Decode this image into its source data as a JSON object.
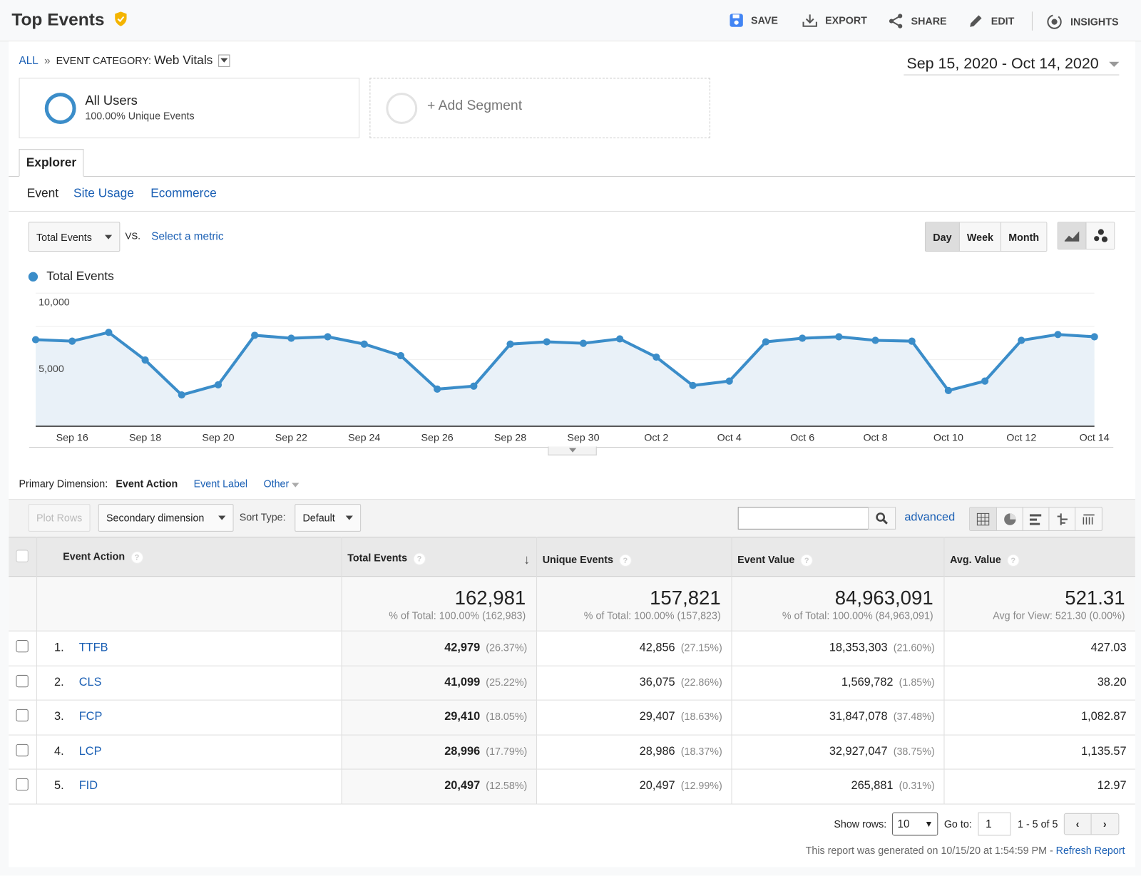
{
  "header": {
    "title": "Top Events",
    "verified_icon": "shield-check-icon",
    "actions": [
      {
        "label": "SAVE",
        "icon": "save-icon"
      },
      {
        "label": "EXPORT",
        "icon": "download-icon"
      },
      {
        "label": "SHARE",
        "icon": "share-icon"
      },
      {
        "label": "EDIT",
        "icon": "pencil-icon"
      },
      {
        "label": "INSIGHTS",
        "icon": "insights-icon"
      }
    ]
  },
  "breadcrumb": {
    "all": "ALL",
    "sep": "»",
    "category_label": "EVENT CATEGORY:",
    "category_value": "Web Vitals"
  },
  "date_range": "Sep 15, 2020 - Oct 14, 2020",
  "segments": {
    "active_name": "All Users",
    "active_sub": "100.00% Unique Events",
    "add": "+ Add Segment"
  },
  "tabs": {
    "explorer": "Explorer",
    "subtabs": [
      "Event",
      "Site Usage",
      "Ecommerce"
    ]
  },
  "chart_controls": {
    "metric": "Total Events",
    "vs": "VS.",
    "select_metric": "Select a metric",
    "periods": [
      "Day",
      "Week",
      "Month"
    ],
    "active_period": "Day"
  },
  "colors": {
    "series": "#3b8dc9",
    "link": "#1a5fb4",
    "area": "#e9f1f8"
  },
  "chart_data": {
    "type": "area",
    "legend": "Total Events",
    "legend_position": "top-left",
    "ylim": [
      0,
      10000
    ],
    "yticks": [
      "10,000",
      "5,000"
    ],
    "grid": true,
    "x": [
      "Sep 15",
      "Sep 16",
      "Sep 17",
      "Sep 18",
      "Sep 19",
      "Sep 20",
      "Sep 21",
      "Sep 22",
      "Sep 23",
      "Sep 24",
      "Sep 25",
      "Sep 26",
      "Sep 27",
      "Sep 28",
      "Sep 29",
      "Sep 30",
      "Oct 1",
      "Oct 2",
      "Oct 3",
      "Oct 4",
      "Oct 5",
      "Oct 6",
      "Oct 7",
      "Oct 8",
      "Oct 9",
      "Oct 10",
      "Oct 11",
      "Oct 12",
      "Oct 13",
      "Oct 14"
    ],
    "values": [
      6500,
      6390,
      7050,
      4970,
      2350,
      3110,
      6830,
      6610,
      6720,
      6170,
      5300,
      2790,
      3010,
      6170,
      6340,
      6230,
      6560,
      5190,
      3060,
      3390,
      6340,
      6610,
      6720,
      6450,
      6390,
      2680,
      3390,
      6450,
      6890,
      6720
    ],
    "xtick_labels": [
      "Sep 16",
      "Sep 18",
      "Sep 20",
      "Sep 22",
      "Sep 24",
      "Sep 26",
      "Sep 28",
      "Sep 30",
      "Oct 2",
      "Oct 4",
      "Oct 6",
      "Oct 8",
      "Oct 10",
      "Oct 12",
      "Oct 14"
    ]
  },
  "dimension": {
    "label": "Primary Dimension:",
    "active": "Event Action",
    "options": [
      "Event Label",
      "Other"
    ]
  },
  "toolbar": {
    "plot_rows": "Plot Rows",
    "secondary": "Secondary dimension",
    "sort_label": "Sort Type:",
    "sort_value": "Default",
    "search_placeholder": "",
    "advanced": "advanced"
  },
  "table": {
    "columns": [
      "Event Action",
      "Total Events",
      "Unique Events",
      "Event Value",
      "Avg. Value"
    ],
    "totals": [
      {
        "value": "162,981",
        "sub": "% of Total: 100.00% (162,983)"
      },
      {
        "value": "157,821",
        "sub": "% of Total: 100.00% (157,823)"
      },
      {
        "value": "84,963,091",
        "sub": "% of Total: 100.00% (84,963,091)"
      },
      {
        "value": "521.31",
        "sub": "Avg for View: 521.30 (0.00%)"
      }
    ],
    "rows": [
      {
        "n": "1.",
        "name": "TTFB",
        "total": "42,979",
        "total_pct": "(26.37%)",
        "unique": "42,856",
        "unique_pct": "(27.15%)",
        "value": "18,353,303",
        "value_pct": "(21.60%)",
        "avg": "427.03"
      },
      {
        "n": "2.",
        "name": "CLS",
        "total": "41,099",
        "total_pct": "(25.22%)",
        "unique": "36,075",
        "unique_pct": "(22.86%)",
        "value": "1,569,782",
        "value_pct": "(1.85%)",
        "avg": "38.20"
      },
      {
        "n": "3.",
        "name": "FCP",
        "total": "29,410",
        "total_pct": "(18.05%)",
        "unique": "29,407",
        "unique_pct": "(18.63%)",
        "value": "31,847,078",
        "value_pct": "(37.48%)",
        "avg": "1,082.87"
      },
      {
        "n": "4.",
        "name": "LCP",
        "total": "28,996",
        "total_pct": "(17.79%)",
        "unique": "28,986",
        "unique_pct": "(18.37%)",
        "value": "32,927,047",
        "value_pct": "(38.75%)",
        "avg": "1,135.57"
      },
      {
        "n": "5.",
        "name": "FID",
        "total": "20,497",
        "total_pct": "(12.58%)",
        "unique": "20,497",
        "unique_pct": "(12.99%)",
        "value": "265,881",
        "value_pct": "(0.31%)",
        "avg": "12.97"
      }
    ]
  },
  "pagination": {
    "show_rows_label": "Show rows:",
    "show_rows": "10",
    "goto_label": "Go to:",
    "goto": "1",
    "range": "1 - 5 of 5"
  },
  "footer": {
    "generated": "This report was generated on 10/15/20 at 1:54:59 PM - ",
    "refresh": "Refresh Report"
  }
}
